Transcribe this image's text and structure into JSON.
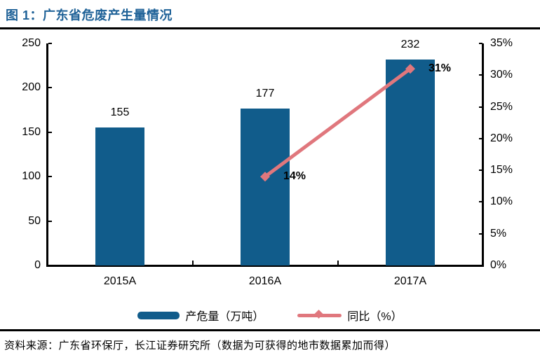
{
  "title": "图 1：广东省危废产生量情况",
  "source_note": "资料来源：广东省环保厅，长江证券研究所（数据为可获得的地市数据累加而得）",
  "colors": {
    "title": "#1E6197",
    "bar_series": "#115C8B",
    "line_series": "#E0777D",
    "axis": "#000000",
    "text": "#000000",
    "background": "#FFFFFF"
  },
  "chart_data": {
    "type": "bar",
    "title": "广东省危废产生量情况",
    "categories": [
      "2015A",
      "2016A",
      "2017A"
    ],
    "series": [
      {
        "name": "产危量（万吨）",
        "type": "bar",
        "axis": "left",
        "values": [
          155,
          177,
          232
        ],
        "data_labels": [
          "155",
          "177",
          "232"
        ],
        "color": "#115C8B"
      },
      {
        "name": "同比（%）",
        "type": "line",
        "axis": "right",
        "values": [
          null,
          14,
          31
        ],
        "data_labels": [
          "",
          "14%",
          "31%"
        ],
        "color": "#E0777D"
      }
    ],
    "left_axis": {
      "min": 0,
      "max": 250,
      "step": 50,
      "tick_labels": [
        "0",
        "50",
        "100",
        "150",
        "200",
        "250"
      ]
    },
    "right_axis": {
      "min": 0,
      "max": 35,
      "step": 5,
      "tick_labels": [
        "0%",
        "5%",
        "10%",
        "15%",
        "20%",
        "25%",
        "30%",
        "35%"
      ],
      "unit": "%"
    },
    "legend_position": "bottom",
    "grid": false
  }
}
